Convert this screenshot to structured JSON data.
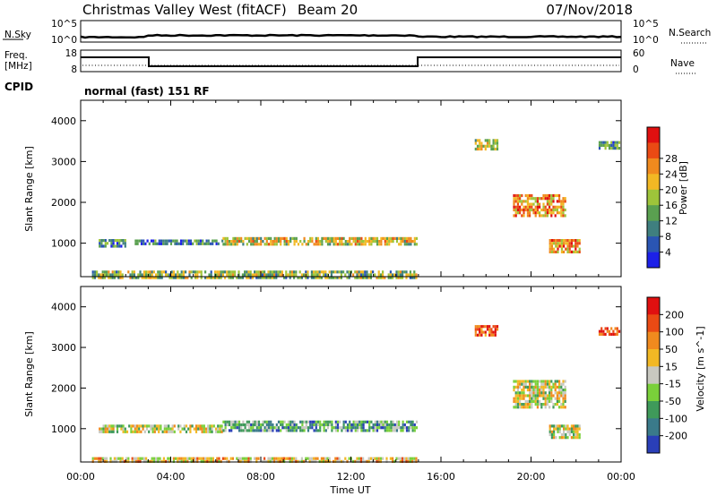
{
  "header": {
    "title": "Christmas Valley West (fitACF)",
    "beam": "Beam 20",
    "date": "07/Nov/2018"
  },
  "top_panels": {
    "nsky_label": "N.Sky",
    "nsky_ticks": [
      "10^5",
      "10^0"
    ],
    "nsearch_label": "N.Search",
    "nsearch_ticks": [
      "10^5",
      "10^0"
    ],
    "freq_label_1": "Freq.",
    "freq_label_2": "[MHz]",
    "freq_ticks": [
      "18",
      "8"
    ],
    "nave_label": "Nave",
    "nave_ticks": [
      "60",
      "0"
    ],
    "cpid_label": "CPID",
    "cpid_text": "normal (fast) 151 RF"
  },
  "x_axis": {
    "label": "Time UT",
    "ticks": [
      "00:00",
      "04:00",
      "08:00",
      "12:00",
      "16:00",
      "20:00",
      "00:00"
    ]
  },
  "chart_data": [
    {
      "type": "heatmap",
      "quantity": "Power",
      "ylabel": "Slant Range [km]",
      "xlabel": "Time UT",
      "xlim_hours": [
        0,
        24
      ],
      "ylim_km": [
        180,
        4500
      ],
      "yticks": [
        "1000",
        "2000",
        "3000",
        "4000"
      ],
      "colorbar_label": "Power [dB]",
      "colorbar_ticks": [
        "4",
        "8",
        "12",
        "16",
        "20",
        "24",
        "28"
      ],
      "colorbar_colors": [
        "#1c20e8",
        "#2a55b3",
        "#3f7f7f",
        "#5aa050",
        "#9ec43a",
        "#f2b824",
        "#f08a1e",
        "#ea4a14",
        "#e01010"
      ],
      "regions": [
        {
          "t0": 0.5,
          "t1": 14.9,
          "r0": 180,
          "r1": 330,
          "level": 0.45
        },
        {
          "t0": 0.8,
          "t1": 2.0,
          "r0": 950,
          "r1": 1100,
          "level": 0.3
        },
        {
          "t0": 2.4,
          "t1": 6.3,
          "r0": 950,
          "r1": 1090,
          "level": 0.25
        },
        {
          "t0": 6.3,
          "t1": 14.9,
          "r0": 940,
          "r1": 1150,
          "level": 0.55
        },
        {
          "t0": 17.5,
          "t1": 18.5,
          "r0": 3300,
          "r1": 3550,
          "level": 0.5
        },
        {
          "t0": 19.2,
          "t1": 21.5,
          "r0": 1650,
          "r1": 2200,
          "level": 0.7
        },
        {
          "t0": 20.8,
          "t1": 22.2,
          "r0": 780,
          "r1": 1100,
          "level": 0.7
        },
        {
          "t0": 23.0,
          "t1": 23.9,
          "r0": 3300,
          "r1": 3500,
          "level": 0.3
        }
      ]
    },
    {
      "type": "heatmap",
      "quantity": "Velocity",
      "ylabel": "Slant Range [km]",
      "xlabel": "Time UT",
      "xlim_hours": [
        0,
        24
      ],
      "ylim_km": [
        180,
        4500
      ],
      "yticks": [
        "1000",
        "2000",
        "3000",
        "4000"
      ],
      "colorbar_label": "Velocity [m s^-1]",
      "colorbar_ticks": [
        "200",
        "100",
        "50",
        "15",
        "-15",
        "-50",
        "-100",
        "-200"
      ],
      "colorbar_colors": [
        "#2a3fb8",
        "#3a7a8a",
        "#3f9a5a",
        "#7ad03a",
        "#c8c8c0",
        "#f2b824",
        "#f08a1e",
        "#ea4a14",
        "#e01010"
      ],
      "regions": [
        {
          "t0": 0.5,
          "t1": 14.9,
          "r0": 180,
          "r1": 300,
          "level": 0.6
        },
        {
          "t0": 0.8,
          "t1": 6.3,
          "r0": 950,
          "r1": 1100,
          "level": 0.5
        },
        {
          "t0": 6.3,
          "t1": 14.9,
          "r0": 930,
          "r1": 1200,
          "level": 0.3
        },
        {
          "t0": 17.5,
          "t1": 18.5,
          "r0": 3300,
          "r1": 3550,
          "level": 0.9
        },
        {
          "t0": 19.2,
          "t1": 21.5,
          "r0": 1500,
          "r1": 2200,
          "level": 0.5
        },
        {
          "t0": 20.8,
          "t1": 22.2,
          "r0": 800,
          "r1": 1100,
          "level": 0.5
        },
        {
          "t0": 23.0,
          "t1": 23.9,
          "r0": 3300,
          "r1": 3500,
          "level": 0.9
        }
      ]
    }
  ]
}
